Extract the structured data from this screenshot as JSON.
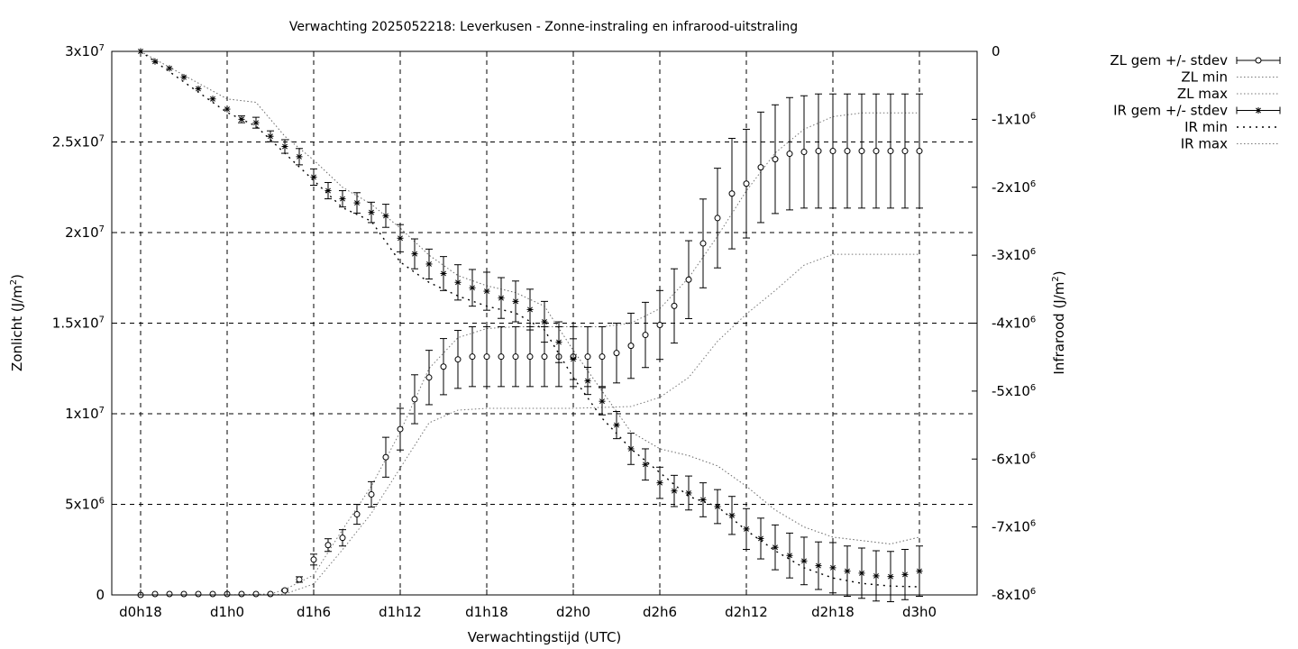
{
  "chart_data": {
    "type": "line",
    "title": "Verwachting 2025052218: Leverkusen - Zonne-instraling en infrarood-uitstraling",
    "xlabel": "Verwachtingstijd (UTC)",
    "ylabel_left_text": "Zonlicht (J/m",
    "ylabel_left_sup": "2",
    "ylabel_left_end": ")",
    "ylabel_right_text": "Infrarood (J/m",
    "ylabel_right_sup": "2",
    "ylabel_right_end": ")",
    "x_hours": [
      0,
      58
    ],
    "x_ticks": [
      {
        "h": 0,
        "label": "d0h18"
      },
      {
        "h": 6,
        "label": "d1h0"
      },
      {
        "h": 12,
        "label": "d1h6"
      },
      {
        "h": 18,
        "label": "d1h12"
      },
      {
        "h": 24,
        "label": "d1h18"
      },
      {
        "h": 30,
        "label": "d2h0"
      },
      {
        "h": 36,
        "label": "d2h6"
      },
      {
        "h": 42,
        "label": "d2h12"
      },
      {
        "h": 48,
        "label": "d2h18"
      },
      {
        "h": 54,
        "label": "d3h0"
      }
    ],
    "yleft_range": [
      0,
      30000000
    ],
    "yleft_ticks": [
      {
        "v": 0,
        "base": "0",
        "exp": ""
      },
      {
        "v": 5000000,
        "base": "5x10",
        "exp": "6"
      },
      {
        "v": 10000000,
        "base": "1x10",
        "exp": "7"
      },
      {
        "v": 15000000,
        "base": "1.5x10",
        "exp": "7"
      },
      {
        "v": 20000000,
        "base": "2x10",
        "exp": "7"
      },
      {
        "v": 25000000,
        "base": "2.5x10",
        "exp": "7"
      },
      {
        "v": 30000000,
        "base": "3x10",
        "exp": "7"
      }
    ],
    "yright_range": [
      -8000000,
      0
    ],
    "yright_ticks": [
      {
        "v": 0,
        "base": "0",
        "exp": ""
      },
      {
        "v": -1000000,
        "base": "-1x10",
        "exp": "6"
      },
      {
        "v": -2000000,
        "base": "-2x10",
        "exp": "6"
      },
      {
        "v": -3000000,
        "base": "-3x10",
        "exp": "6"
      },
      {
        "v": -4000000,
        "base": "-4x10",
        "exp": "6"
      },
      {
        "v": -5000000,
        "base": "-5x10",
        "exp": "6"
      },
      {
        "v": -6000000,
        "base": "-6x10",
        "exp": "6"
      },
      {
        "v": -7000000,
        "base": "-7x10",
        "exp": "6"
      },
      {
        "v": -8000000,
        "base": "-8x10",
        "exp": "6"
      }
    ],
    "grid": true,
    "legend_position": "right, outside",
    "legend": [
      "ZL gem +/- stdev",
      "ZL min",
      "ZL max",
      "IR gem +/- stdev",
      "IR min",
      "IR max"
    ],
    "series": [
      {
        "name": "ZL gem +/- stdev",
        "axis": "left",
        "x": [
          0,
          1,
          2,
          3,
          4,
          5,
          6,
          7,
          8,
          9,
          10,
          11,
          12,
          13,
          14,
          15,
          16,
          17,
          18,
          19,
          20,
          21,
          22,
          23,
          24,
          25,
          26,
          27,
          28,
          29,
          30,
          31,
          32,
          33,
          34,
          35,
          36,
          37,
          38,
          39,
          40,
          41,
          42,
          43,
          44,
          45,
          46,
          47,
          48,
          49,
          50,
          51,
          52,
          53,
          54
        ],
        "mean": [
          0,
          50000,
          50000,
          50000,
          50000,
          50000,
          50000,
          50000,
          50000,
          50000,
          250000,
          850000,
          1950000,
          2750000,
          3150000,
          4450000,
          5550000,
          7600000,
          9150000,
          10800000,
          12000000,
          12600000,
          13000000,
          13150000,
          13150000,
          13150000,
          13150000,
          13150000,
          13150000,
          13150000,
          13150000,
          13150000,
          13150000,
          13350000,
          13750000,
          14350000,
          14900000,
          15950000,
          17400000,
          19400000,
          20800000,
          22150000,
          22700000,
          23600000,
          24050000,
          24350000,
          24450000,
          24500000,
          24500000,
          24500000,
          24500000,
          24500000,
          24500000,
          24500000,
          24500000
        ],
        "stdev": [
          0,
          0,
          0,
          0,
          0,
          0,
          0,
          0,
          0,
          0,
          50000,
          150000,
          300000,
          350000,
          450000,
          550000,
          700000,
          1100000,
          1150000,
          1350000,
          1500000,
          1550000,
          1600000,
          1650000,
          1650000,
          1650000,
          1650000,
          1650000,
          1650000,
          1650000,
          1650000,
          1650000,
          1650000,
          1650000,
          1800000,
          1800000,
          1900000,
          2050000,
          2150000,
          2450000,
          2750000,
          3050000,
          3000000,
          3050000,
          3000000,
          3100000,
          3100000,
          3150000,
          3150000,
          3150000,
          3150000,
          3150000,
          3150000,
          3150000,
          3150000
        ]
      },
      {
        "name": "ZL min",
        "axis": "left",
        "x": [
          0,
          6,
          9,
          10,
          12,
          14,
          16,
          18,
          20,
          22,
          24,
          26,
          30,
          34,
          36,
          38,
          40,
          42,
          44,
          46,
          48,
          50,
          52,
          54
        ],
        "y": [
          0,
          0,
          0,
          50000,
          600000,
          2500000,
          4500000,
          7000000,
          9500000,
          10200000,
          10300000,
          10300000,
          10300000,
          10400000,
          10900000,
          12000000,
          14000000,
          15500000,
          16800000,
          18200000,
          18800000,
          18800000,
          18800000,
          18800000
        ]
      },
      {
        "name": "ZL max",
        "axis": "left",
        "x": [
          0,
          6,
          9,
          10,
          12,
          14,
          16,
          18,
          20,
          22,
          24,
          26,
          28,
          30,
          32,
          34,
          36,
          38,
          40,
          42,
          44,
          46,
          48,
          50,
          52,
          54
        ],
        "y": [
          0,
          0,
          50000,
          300000,
          1100000,
          3600000,
          6000000,
          9000000,
          12500000,
          14200000,
          14700000,
          14800000,
          14800000,
          14800000,
          14800000,
          15000000,
          15800000,
          17500000,
          19800000,
          22300000,
          24400000,
          25700000,
          26400000,
          26600000,
          26600000,
          26600000
        ]
      },
      {
        "name": "IR gem +/- stdev",
        "axis": "right",
        "x": [
          0,
          1,
          2,
          3,
          4,
          5,
          6,
          7,
          8,
          9,
          10,
          11,
          12,
          13,
          14,
          15,
          16,
          17,
          18,
          19,
          20,
          21,
          22,
          23,
          24,
          25,
          26,
          27,
          28,
          29,
          30,
          31,
          32,
          33,
          34,
          35,
          36,
          37,
          38,
          39,
          40,
          41,
          42,
          43,
          44,
          45,
          46,
          47,
          48,
          49,
          50,
          51,
          52,
          53,
          54
        ],
        "mean": [
          0,
          -150000,
          -250000,
          -380000,
          -550000,
          -700000,
          -850000,
          -1000000,
          -1050000,
          -1250000,
          -1400000,
          -1550000,
          -1850000,
          -2050000,
          -2170000,
          -2230000,
          -2370000,
          -2420000,
          -2750000,
          -2980000,
          -3130000,
          -3270000,
          -3400000,
          -3480000,
          -3530000,
          -3630000,
          -3680000,
          -3800000,
          -3980000,
          -4280000,
          -4530000,
          -4850000,
          -5150000,
          -5500000,
          -5850000,
          -6080000,
          -6350000,
          -6470000,
          -6500000,
          -6600000,
          -6700000,
          -6830000,
          -7030000,
          -7170000,
          -7300000,
          -7420000,
          -7500000,
          -7570000,
          -7600000,
          -7650000,
          -7680000,
          -7720000,
          -7730000,
          -7700000,
          -7650000
        ],
        "stdev": [
          0,
          0,
          0,
          0,
          0,
          0,
          0,
          50000,
          80000,
          80000,
          100000,
          120000,
          120000,
          120000,
          120000,
          150000,
          150000,
          170000,
          200000,
          220000,
          220000,
          250000,
          260000,
          270000,
          280000,
          300000,
          300000,
          300000,
          300000,
          300000,
          300000,
          200000,
          200000,
          200000,
          230000,
          230000,
          230000,
          230000,
          250000,
          250000,
          250000,
          280000,
          300000,
          300000,
          330000,
          330000,
          350000,
          350000,
          370000,
          370000,
          370000,
          370000,
          370000,
          370000,
          370000
        ]
      },
      {
        "name": "IR min",
        "axis": "right",
        "x": [
          0,
          6,
          8,
          10,
          12,
          14,
          16,
          18,
          20,
          22,
          24,
          26,
          28,
          30,
          32,
          34,
          36,
          38,
          40,
          42,
          44,
          46,
          48,
          50,
          52,
          54
        ],
        "y": [
          0,
          -900000,
          -1100000,
          -1500000,
          -1900000,
          -2300000,
          -2500000,
          -3100000,
          -3400000,
          -3600000,
          -3750000,
          -3850000,
          -4100000,
          -4800000,
          -5400000,
          -5850000,
          -6200000,
          -6550000,
          -6700000,
          -7050000,
          -7350000,
          -7600000,
          -7750000,
          -7830000,
          -7870000,
          -7880000
        ]
      },
      {
        "name": "IR max",
        "axis": "right",
        "x": [
          0,
          6,
          8,
          10,
          12,
          14,
          16,
          18,
          20,
          22,
          24,
          26,
          28,
          30,
          32,
          34,
          36,
          38,
          40,
          42,
          44,
          46,
          48,
          50,
          52,
          54
        ],
        "y": [
          0,
          -700000,
          -750000,
          -1250000,
          -1600000,
          -2000000,
          -2250000,
          -2600000,
          -3000000,
          -3300000,
          -3450000,
          -3550000,
          -3750000,
          -4400000,
          -5000000,
          -5600000,
          -5850000,
          -5950000,
          -6100000,
          -6400000,
          -6750000,
          -7000000,
          -7150000,
          -7200000,
          -7250000,
          -7150000
        ]
      }
    ]
  }
}
